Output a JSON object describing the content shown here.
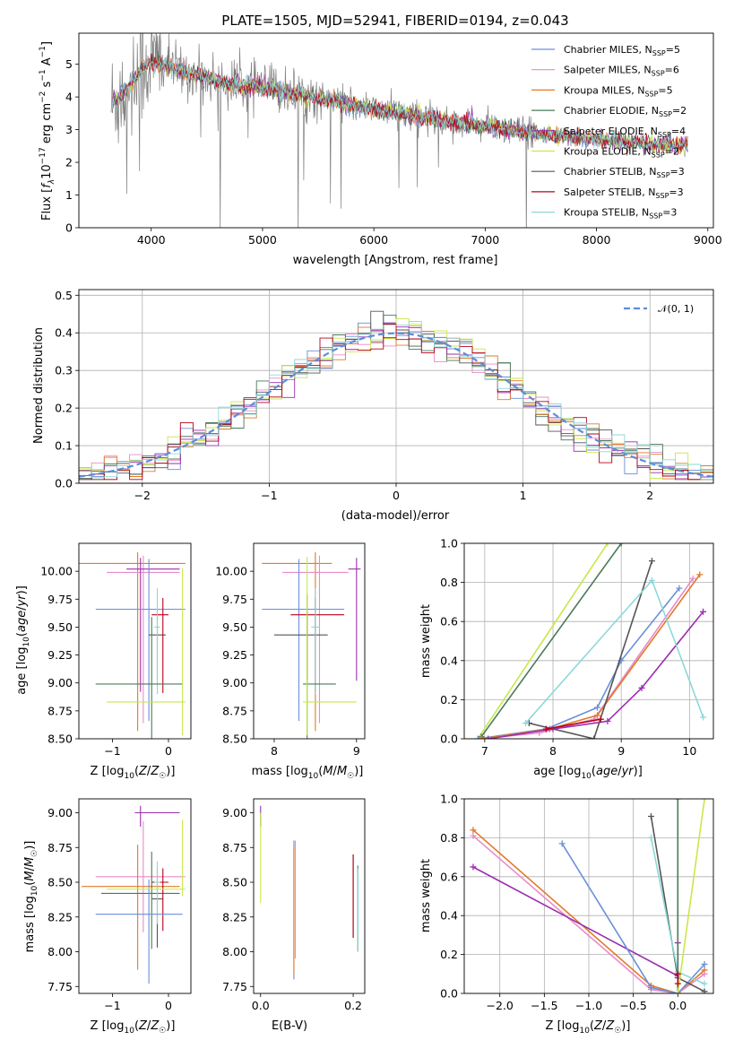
{
  "figure_title": "PLATE=1505, MJD=52941, FIBERID=0194, z=0.043",
  "colors": {
    "chabrier_miles": "#6a8fd8",
    "salpeter_miles": "#e88cc8",
    "kroupa_miles": "#e07a2a",
    "chabrier_elodie": "#4a7a5a",
    "salpeter_elodie": "#9b2fae",
    "kroupa_elodie": "#c8e84a",
    "chabrier_stelib": "#555555",
    "salpeter_stelib": "#b8001a",
    "kroupa_stelib": "#8cd8d8",
    "data": "#808080",
    "normal": "#5b8ed8"
  },
  "chart_data": [
    {
      "id": "spectrum",
      "type": "line",
      "title": "PLATE=1505, MJD=52941, FIBERID=0194, z=0.043",
      "xlabel": "wavelength [Angstrom, rest frame]",
      "ylabel": "Flux [f_λ 10^-17 erg cm^-2 s^-1 A^-1]",
      "xlim": [
        3350,
        9050
      ],
      "ylim": [
        0,
        5.95
      ],
      "xticks": [
        4000,
        5000,
        6000,
        7000,
        8000,
        9000
      ],
      "yticks": [
        0,
        1,
        2,
        3,
        4,
        5
      ],
      "legend_position": "top-right",
      "data_trend": {
        "x": [
          3650,
          3800,
          3900,
          4000,
          4100,
          4300,
          4500,
          4700,
          5000,
          5300,
          5600,
          5900,
          6200,
          6500,
          6800,
          7100,
          7400,
          7700,
          8000,
          8300,
          8600,
          8800
        ],
        "y": [
          3.8,
          4.3,
          4.8,
          5.1,
          5.0,
          4.75,
          4.6,
          4.4,
          4.3,
          4.1,
          3.9,
          3.7,
          3.5,
          3.35,
          3.2,
          3.05,
          2.9,
          2.78,
          2.7,
          2.6,
          2.55,
          2.5
        ]
      },
      "series": [
        {
          "name": "Chabrier MILES, N_SSP=5",
          "legend_label": "Chabrier MILES, N",
          "legend_sub": "SSP",
          "legend_tail": "=5",
          "color": "#6a8fd8"
        },
        {
          "name": "Salpeter MILES, N_SSP=6",
          "legend_label": "Salpeter MILES, N",
          "legend_sub": "SSP",
          "legend_tail": "=6",
          "color": "#e88cc8"
        },
        {
          "name": "Kroupa MILES, N_SSP=5",
          "legend_label": "Kroupa MILES, N",
          "legend_sub": "SSP",
          "legend_tail": "=5",
          "color": "#e07a2a"
        },
        {
          "name": "Chabrier ELODIE, N_SSP=2",
          "legend_label": "Chabrier ELODIE, N",
          "legend_sub": "SSP",
          "legend_tail": "=2",
          "color": "#4a7a5a"
        },
        {
          "name": "Salpeter ELODIE, N_SSP=4",
          "legend_label": "Salpeter ELODIE, N",
          "legend_sub": "SSP",
          "legend_tail": "=4",
          "color": "#9b2fae"
        },
        {
          "name": "Kroupa ELODIE, N_SSP=2",
          "legend_label": "Kroupa ELODIE, N",
          "legend_sub": "SSP",
          "legend_tail": "=2",
          "color": "#c8e84a"
        },
        {
          "name": "Chabrier STELIB, N_SSP=3",
          "legend_label": "Chabrier STELIB, N",
          "legend_sub": "SSP",
          "legend_tail": "=3",
          "color": "#555555"
        },
        {
          "name": "Salpeter STELIB, N_SSP=3",
          "legend_label": "Salpeter STELIB, N",
          "legend_sub": "SSP",
          "legend_tail": "=3",
          "color": "#b8001a"
        },
        {
          "name": "Kroupa STELIB, N_SSP=3",
          "legend_label": "Kroupa STELIB, N",
          "legend_sub": "SSP",
          "legend_tail": "=3",
          "color": "#8cd8d8"
        }
      ]
    },
    {
      "id": "residuals",
      "type": "line",
      "xlabel": "(data-model)/error",
      "ylabel": "Normed distribution",
      "xlim": [
        -2.5,
        2.5
      ],
      "ylim": [
        0,
        0.515
      ],
      "xticks": [
        -2,
        -1,
        0,
        1,
        2
      ],
      "yticks": [
        0.0,
        0.1,
        0.2,
        0.3,
        0.4,
        0.5
      ],
      "grid": true,
      "legend": "𝒩(0, 1)",
      "legend_position": "top-right",
      "bin_width": 0.1
    },
    {
      "id": "age_vs_Z",
      "type": "scatter",
      "xlabel": "Z [log10(Z/Z☉)]",
      "ylabel": "age  [log10(age/yr)]",
      "xlim": [
        -1.6,
        0.4
      ],
      "ylim": [
        8.5,
        10.25
      ],
      "xticks": [
        -1,
        0
      ],
      "yticks": [
        8.5,
        8.75,
        9.0,
        9.25,
        9.5,
        9.75,
        10.0
      ],
      "ytick_labels": [
        "8.50",
        "8.75",
        "9.00",
        "9.25",
        "9.50",
        "9.75",
        "10.00"
      ],
      "points": [
        {
          "color": "#e07a2a",
          "x": -0.55,
          "xerr": [
            1.45,
            0.85
          ],
          "y": 10.07,
          "yerr": [
            1.5,
            0.1
          ]
        },
        {
          "color": "#e88cc8",
          "x": -0.45,
          "xerr": [
            0.65,
            0.65
          ],
          "y": 9.99,
          "yerr": [
            1.35,
            0.15
          ]
        },
        {
          "color": "#9b2fae",
          "x": -0.5,
          "xerr": [
            0.25,
            0.7
          ],
          "y": 10.02,
          "yerr": [
            1.1,
            0.1
          ]
        },
        {
          "color": "#6a8fd8",
          "x": -0.35,
          "xerr": [
            0.95,
            0.65
          ],
          "y": 9.66,
          "yerr": [
            1.0,
            0.45
          ]
        },
        {
          "color": "#555555",
          "x": -0.2,
          "xerr": [
            0.15,
            0.15
          ],
          "y": 9.43,
          "yerr": [
            0.4,
            0.2
          ]
        },
        {
          "color": "#b8001a",
          "x": -0.1,
          "xerr": [
            0.2,
            0.1
          ],
          "y": 9.61,
          "yerr": [
            0.7,
            0.15
          ]
        },
        {
          "color": "#8cd8d8",
          "x": -0.2,
          "xerr": [
            0.05,
            0.05
          ],
          "y": 9.5,
          "yerr": [
            0.6,
            0.35
          ]
        },
        {
          "color": "#4a7a5a",
          "x": -0.3,
          "xerr": [
            1.0,
            0.55
          ],
          "y": 8.99,
          "yerr": [
            0.5,
            0.6
          ]
        },
        {
          "color": "#c8e84a",
          "x": 0.25,
          "xerr": [
            1.35,
            0.05
          ],
          "y": 8.83,
          "yerr": [
            0.3,
            1.2
          ]
        }
      ]
    },
    {
      "id": "age_vs_mass",
      "type": "scatter",
      "xlabel": "mass [log10(M/M☉)]",
      "ylabel": "",
      "xlim": [
        7.75,
        9.1
      ],
      "ylim": [
        8.5,
        10.25
      ],
      "xticks": [
        8,
        9
      ],
      "yticks": [
        8.5,
        8.75,
        9.0,
        9.25,
        9.5,
        9.75,
        10.0
      ],
      "ytick_labels": [
        "8.50",
        "8.75",
        "9.00",
        "9.25",
        "9.50",
        "9.75",
        "10.00"
      ],
      "points": [
        {
          "color": "#e07a2a",
          "x": 8.5,
          "xerr": [
            0.65,
            0.2
          ],
          "y": 10.07,
          "yerr": [
            1.5,
            0.1
          ]
        },
        {
          "color": "#e88cc8",
          "x": 8.55,
          "xerr": [
            0.45,
            0.35
          ],
          "y": 9.99,
          "yerr": [
            1.35,
            0.15
          ]
        },
        {
          "color": "#9b2fae",
          "x": 9.0,
          "xerr": [
            0.1,
            0.05
          ],
          "y": 10.02,
          "yerr": [
            1.0,
            0.1
          ]
        },
        {
          "color": "#6a8fd8",
          "x": 8.3,
          "xerr": [
            0.45,
            0.55
          ],
          "y": 9.66,
          "yerr": [
            1.0,
            0.45
          ]
        },
        {
          "color": "#555555",
          "x": 8.4,
          "xerr": [
            0.4,
            0.25
          ],
          "y": 9.43,
          "yerr": [
            0.4,
            0.2
          ]
        },
        {
          "color": "#b8001a",
          "x": 8.5,
          "xerr": [
            0.3,
            0.35
          ],
          "y": 9.61,
          "yerr": [
            0.7,
            0.15
          ]
        },
        {
          "color": "#8cd8d8",
          "x": 8.5,
          "xerr": [
            0.05,
            0.05
          ],
          "y": 9.5,
          "yerr": [
            0.6,
            0.35
          ]
        },
        {
          "color": "#4a7a5a",
          "x": 8.4,
          "xerr": [
            0.05,
            0.35
          ],
          "y": 8.99,
          "yerr": [
            0.5,
            0.8
          ]
        },
        {
          "color": "#c8e84a",
          "x": 8.4,
          "xerr": [
            0.05,
            0.6
          ],
          "y": 8.83,
          "yerr": [
            0.3,
            1.3
          ]
        }
      ]
    },
    {
      "id": "massweight_vs_age",
      "type": "line",
      "xlabel": "age  [log10(age/yr)]",
      "ylabel": "mass weight",
      "xlim": [
        6.7,
        10.35
      ],
      "ylim": [
        0,
        1.0
      ],
      "xticks": [
        7,
        8,
        9,
        10
      ],
      "yticks": [
        0.0,
        0.2,
        0.4,
        0.6,
        0.8,
        1.0
      ],
      "grid": true,
      "series": [
        {
          "color": "#c8e84a",
          "x": [
            6.9,
            8.8
          ],
          "y": [
            0.0,
            1.0
          ]
        },
        {
          "color": "#4a7a5a",
          "x": [
            6.95,
            9.0
          ],
          "y": [
            0.01,
            1.0
          ]
        },
        {
          "color": "#6a8fd8",
          "x": [
            6.9,
            7.9,
            8.65,
            9.0,
            9.85
          ],
          "y": [
            0.0,
            0.05,
            0.16,
            0.4,
            0.77
          ]
        },
        {
          "color": "#e88cc8",
          "x": [
            6.95,
            7.8,
            8.6,
            10.05
          ],
          "y": [
            0.0,
            0.03,
            0.1,
            0.82
          ]
        },
        {
          "color": "#e07a2a",
          "x": [
            6.95,
            7.95,
            8.65,
            10.15
          ],
          "y": [
            0.0,
            0.05,
            0.12,
            0.84
          ]
        },
        {
          "color": "#9b2fae",
          "x": [
            7.05,
            8.0,
            8.8,
            9.3,
            10.2
          ],
          "y": [
            0.0,
            0.05,
            0.09,
            0.26,
            0.65
          ]
        },
        {
          "color": "#555555",
          "x": [
            7.65,
            8.6,
            9.45
          ],
          "y": [
            0.08,
            0.0,
            0.91
          ]
        },
        {
          "color": "#b8001a",
          "x": [
            7.9,
            8.7
          ],
          "y": [
            0.05,
            0.1
          ]
        },
        {
          "color": "#8cd8d8",
          "x": [
            7.6,
            9.45,
            10.2
          ],
          "y": [
            0.08,
            0.81,
            0.11
          ]
        }
      ]
    },
    {
      "id": "mass_vs_Z",
      "type": "scatter",
      "xlabel": "Z [log10(Z/Z☉)]",
      "ylabel": "mass [log10(M/M☉)]",
      "xlim": [
        -1.6,
        0.4
      ],
      "ylim": [
        7.7,
        9.1
      ],
      "xticks": [
        -1,
        0
      ],
      "yticks": [
        7.75,
        8.0,
        8.25,
        8.5,
        8.75,
        9.0
      ],
      "ytick_labels": [
        "7.75",
        "8.00",
        "8.25",
        "8.50",
        "8.75",
        "9.00"
      ],
      "points": [
        {
          "color": "#9b2fae",
          "x": -0.5,
          "xerr": [
            0.1,
            0.7
          ],
          "y": 9.0,
          "yerr": [
            0.1,
            0.05
          ]
        },
        {
          "color": "#e88cc8",
          "x": -0.45,
          "xerr": [
            0.85,
            0.75
          ],
          "y": 8.54,
          "yerr": [
            0.4,
            0.4
          ]
        },
        {
          "color": "#e07a2a",
          "x": -0.55,
          "xerr": [
            1.0,
            0.75
          ],
          "y": 8.47,
          "yerr": [
            0.6,
            0.3
          ]
        },
        {
          "color": "#4a7a5a",
          "x": -0.3,
          "xerr": [
            0.9,
            0.5
          ],
          "y": 8.42,
          "yerr": [
            0.4,
            0.3
          ]
        },
        {
          "color": "#555555",
          "x": -0.2,
          "xerr": [
            0.1,
            0.1
          ],
          "y": 8.38,
          "yerr": [
            0.35,
            0.22
          ]
        },
        {
          "color": "#b8001a",
          "x": -0.1,
          "xerr": [
            0.2,
            0.1
          ],
          "y": 8.5,
          "yerr": [
            0.35,
            0.1
          ]
        },
        {
          "color": "#8cd8d8",
          "x": -0.2,
          "xerr": [
            0.05,
            0.05
          ],
          "y": 8.5,
          "yerr": [
            0.3,
            0.15
          ]
        },
        {
          "color": "#6a8fd8",
          "x": -0.35,
          "xerr": [
            0.95,
            0.6
          ],
          "y": 8.27,
          "yerr": [
            0.5,
            0.25
          ]
        },
        {
          "color": "#c8e84a",
          "x": 0.25,
          "xerr": [
            1.35,
            0.05
          ],
          "y": 8.45,
          "yerr": [
            0.05,
            0.5
          ]
        }
      ]
    },
    {
      "id": "mass_vs_EBV",
      "type": "scatter",
      "xlabel": "E(B-V)",
      "ylabel": "",
      "xlim": [
        -0.015,
        0.225
      ],
      "ylim": [
        7.7,
        9.1
      ],
      "xticks": [
        0.0,
        0.2
      ],
      "xtick_labels": [
        "0.0",
        "0.2"
      ],
      "yticks": [
        7.75,
        8.0,
        8.25,
        8.5,
        8.75,
        9.0
      ],
      "ytick_labels": [
        "7.75",
        "8.00",
        "8.25",
        "8.50",
        "8.75",
        "9.00"
      ],
      "points": [
        {
          "color": "#9b2fae",
          "x": 0.0,
          "y": 9.0,
          "yerr": [
            0.1,
            0.05
          ]
        },
        {
          "color": "#c8e84a",
          "x": 0.0,
          "y": 8.6,
          "yerr": [
            0.25,
            0.4
          ]
        },
        {
          "color": "#6a8fd8",
          "x": 0.072,
          "y": 8.3,
          "yerr": [
            0.5,
            0.5
          ]
        },
        {
          "color": "#e07a2a",
          "x": 0.072,
          "y": 8.3,
          "yerr": [
            0.45,
            0.45
          ]
        },
        {
          "color": "#e88cc8",
          "x": 0.075,
          "y": 8.5,
          "yerr": [
            0.55,
            0.3
          ]
        },
        {
          "color": "#555555",
          "x": 0.2,
          "y": 8.4,
          "yerr": [
            0.3,
            0.3
          ]
        },
        {
          "color": "#b8001a",
          "x": 0.2,
          "y": 8.4,
          "yerr": [
            0.3,
            0.3
          ]
        },
        {
          "color": "#4a7a5a",
          "x": 0.21,
          "y": 8.3,
          "yerr": [
            0.3,
            0.32
          ]
        },
        {
          "color": "#8cd8d8",
          "x": 0.21,
          "y": 8.3,
          "yerr": [
            0.3,
            0.3
          ]
        }
      ]
    },
    {
      "id": "massweight_vs_Z",
      "type": "line",
      "xlabel": "Z [log10(Z/Z☉)]",
      "ylabel": "mass weight",
      "xlim": [
        -2.4,
        0.4
      ],
      "ylim": [
        0,
        1.0
      ],
      "xticks": [
        -2.0,
        -1.5,
        -1.0,
        -0.5,
        0.0
      ],
      "xtick_labels": [
        "−2.0",
        "−1.5",
        "−1.0",
        "−0.5",
        "0.0"
      ],
      "yticks": [
        0.0,
        0.2,
        0.4,
        0.6,
        0.8,
        1.0
      ],
      "grid": true,
      "series": [
        {
          "color": "#e07a2a",
          "x": [
            -2.3,
            -0.3,
            0.0,
            0.3
          ],
          "y": [
            0.84,
            0.04,
            0.0,
            0.12
          ]
        },
        {
          "color": "#e88cc8",
          "x": [
            -2.3,
            -0.3,
            0.0,
            0.3
          ],
          "y": [
            0.81,
            0.02,
            0.0,
            0.1
          ]
        },
        {
          "color": "#9b2fae",
          "x": [
            -2.3,
            0.0,
            0.0
          ],
          "y": [
            0.65,
            0.09,
            0.26
          ]
        },
        {
          "color": "#6a8fd8",
          "x": [
            -1.3,
            -0.3,
            0.0,
            0.3
          ],
          "y": [
            0.77,
            0.03,
            0.0,
            0.15
          ]
        },
        {
          "color": "#555555",
          "x": [
            -0.3,
            0.0,
            0.3
          ],
          "y": [
            0.91,
            0.08,
            0.01
          ]
        },
        {
          "color": "#8cd8d8",
          "x": [
            -0.3,
            0.0,
            0.3
          ],
          "y": [
            0.8,
            0.11,
            0.05
          ]
        },
        {
          "color": "#4a7a5a",
          "x": [
            0.0,
            0.0
          ],
          "y": [
            0.0,
            1.0
          ]
        },
        {
          "color": "#c8e84a",
          "x": [
            0.0,
            0.3
          ],
          "y": [
            0.0,
            1.0
          ]
        },
        {
          "color": "#b8001a",
          "x": [
            0.0,
            0.0
          ],
          "y": [
            0.05,
            0.1
          ]
        }
      ]
    }
  ]
}
